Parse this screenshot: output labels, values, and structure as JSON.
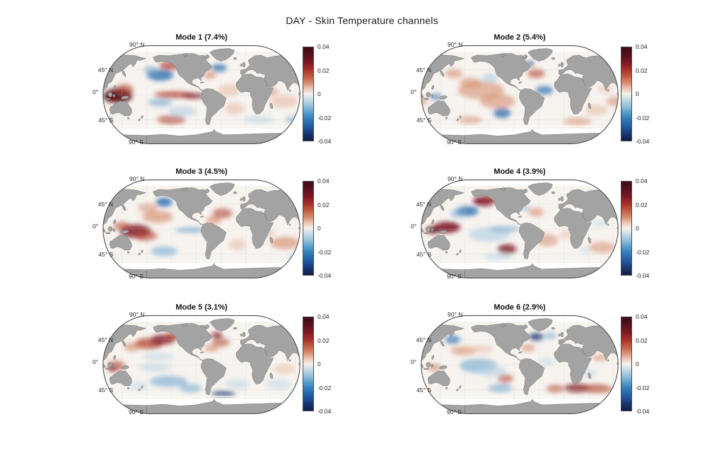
{
  "figure": {
    "title": "DAY - Skin Temperature channels",
    "background": "#ffffff"
  },
  "lat_labels": [
    "90° N",
    "45° N",
    "0°",
    "45° S",
    "90° S"
  ],
  "colorbar": {
    "ticks": [
      "0.04",
      "0.02",
      "0",
      "-0.02",
      "-0.04"
    ],
    "min": -0.04,
    "max": 0.04,
    "gradient_stops": [
      [
        "0%",
        "#3f0a18"
      ],
      [
        "8%",
        "#57101d"
      ],
      [
        "16%",
        "#7d1724"
      ],
      [
        "24%",
        "#a63229"
      ],
      [
        "31%",
        "#c25a3e"
      ],
      [
        "38%",
        "#d98b6d"
      ],
      [
        "44%",
        "#ecc3b0"
      ],
      [
        "50%",
        "#f4f1ee"
      ],
      [
        "56%",
        "#c6dbe7"
      ],
      [
        "63%",
        "#93c1db"
      ],
      [
        "70%",
        "#539ccb"
      ],
      [
        "78%",
        "#2c77b5"
      ],
      [
        "86%",
        "#1d55a0"
      ],
      [
        "93%",
        "#17356f"
      ],
      [
        "100%",
        "#121c4e"
      ]
    ]
  },
  "map_style": {
    "ocean": "#f7f3ef",
    "land": "#a3a3a3",
    "coast": "#2e2e2e",
    "outline": "#4f4f4f",
    "graticule": "#c9c9c9"
  },
  "chart_data": {
    "type": "heatmap",
    "title": "DAY - Skin Temperature channels",
    "subplot_grid": "3x2",
    "projection": "Robinson-like global map, central meridian ~80W",
    "colormap": "diverging blue-white-red (balance)",
    "value_range": [
      -0.04,
      0.04
    ],
    "colorbar_ticks": [
      0.04,
      0.02,
      0,
      -0.02,
      -0.04
    ],
    "latitude_ticks": [
      "90° N",
      "45° N",
      "0°",
      "45° S",
      "90° S"
    ],
    "palette": {
      "XR": "#5e0b15",
      "DR": "#7a1120",
      "R": "#b0402c",
      "MR": "#cf7a58",
      "LR": "#e4b49c",
      "DB": "#16306e",
      "B": "#2e6fae",
      "MB": "#6fa6cf",
      "LB": "#b9d3e4"
    },
    "panels": [
      {
        "label": "Mode 1 (7.4%)",
        "mode": 1,
        "explained_variance_pct": 7.4,
        "features": "Strong positive anomaly over the western Pacific warm pool and equatorial central-east Pacific; negative cells in the central North Pacific, subtropical South Pacific and subpolar North Atlantic.",
        "blobs": [
          [
            128,
            -2,
            26,
            13,
            "XR",
            0.9
          ],
          [
            114,
            -6,
            10,
            7,
            "XR",
            0.85
          ],
          [
            140,
            10,
            16,
            9,
            "R",
            0.6
          ],
          [
            -155,
            35,
            24,
            10,
            "B",
            0.8
          ],
          [
            -172,
            44,
            13,
            7,
            "MB",
            0.6
          ],
          [
            -137,
            52,
            20,
            8,
            "R",
            0.7
          ],
          [
            -130,
            0,
            36,
            6,
            "R",
            0.75
          ],
          [
            -95,
            -2,
            20,
            5,
            "DR",
            0.75
          ],
          [
            -155,
            -14,
            22,
            7,
            "MB",
            0.6
          ],
          [
            -115,
            -30,
            26,
            9,
            "LB",
            0.65
          ],
          [
            -135,
            -45,
            26,
            8,
            "R",
            0.6
          ],
          [
            -48,
            48,
            14,
            7,
            "B",
            0.75
          ],
          [
            -65,
            35,
            12,
            6,
            "MR",
            0.6
          ],
          [
            -30,
            8,
            20,
            11,
            "LR",
            0.5
          ],
          [
            70,
            -12,
            24,
            12,
            "LR",
            0.55
          ],
          [
            -20,
            -25,
            18,
            11,
            "LR",
            0.5
          ],
          [
            25,
            -45,
            28,
            7,
            "LB",
            0.55
          ],
          [
            95,
            -45,
            24,
            7,
            "MB",
            0.5
          ],
          [
            45,
            5,
            15,
            8,
            "MR",
            0.4
          ]
        ]
      },
      {
        "label": "Mode 2 (5.4%)",
        "mode": 2,
        "explained_variance_pct": 5.4,
        "features": "Broad positive anomalies across the tropical Pacific and North Atlantic; negative cells in the subtropical NE Pacific, SE Pacific, tropical Atlantic and Hudson Bay.",
        "blobs": [
          [
            -150,
            8,
            42,
            16,
            "MR",
            0.5
          ],
          [
            -120,
            -12,
            32,
            13,
            "MR",
            0.5
          ],
          [
            -170,
            22,
            20,
            9,
            "MR",
            0.45
          ],
          [
            -133,
            30,
            16,
            8,
            "LB",
            0.7
          ],
          [
            -112,
            -33,
            16,
            9,
            "B",
            0.75
          ],
          [
            -35,
            8,
            16,
            8,
            "B",
            0.7
          ],
          [
            -50,
            38,
            16,
            8,
            "R",
            0.6
          ],
          [
            -78,
            58,
            8,
            5,
            "DB",
            0.85
          ],
          [
            -60,
            56,
            6,
            4,
            "DB",
            0.8
          ],
          [
            128,
            -4,
            10,
            6,
            "B",
            0.6
          ],
          [
            95,
            -12,
            18,
            8,
            "MR",
            0.5
          ],
          [
            60,
            -28,
            20,
            10,
            "LR",
            0.5
          ],
          [
            160,
            38,
            16,
            8,
            "MR",
            0.5
          ],
          [
            25,
            -48,
            26,
            7,
            "MR",
            0.45
          ],
          [
            -170,
            -45,
            22,
            7,
            "MR",
            0.45
          ],
          [
            75,
            10,
            14,
            7,
            "LR",
            0.45
          ]
        ]
      },
      {
        "label": "Mode 3 (4.5%)",
        "mode": 3,
        "explained_variance_pct": 4.5,
        "features": "Negative anomaly in the Gulf of Alaska; strong positive anomaly in the west-central tropical Pacific; weak negative equatorial east Pacific band; positive subtropical Atlantic and south Indian Ocean.",
        "blobs": [
          [
            -148,
            48,
            15,
            8,
            "B",
            0.85
          ],
          [
            -160,
            22,
            28,
            11,
            "MR",
            0.55
          ],
          [
            -178,
            38,
            18,
            8,
            "MR",
            0.45
          ],
          [
            160,
            -4,
            28,
            12,
            "DR",
            0.8
          ],
          [
            178,
            -12,
            22,
            9,
            "R",
            0.6
          ],
          [
            135,
            5,
            15,
            8,
            "R",
            0.55
          ],
          [
            -100,
            -2,
            28,
            5,
            "MB",
            0.65
          ],
          [
            -42,
            28,
            18,
            9,
            "R",
            0.6
          ],
          [
            -58,
            16,
            14,
            7,
            "MR",
            0.55
          ],
          [
            72,
            -25,
            26,
            11,
            "MR",
            0.55
          ],
          [
            -15,
            -28,
            16,
            10,
            "LR",
            0.5
          ],
          [
            -148,
            -40,
            24,
            9,
            "MB",
            0.55
          ],
          [
            100,
            -50,
            24,
            6,
            "LB",
            0.55
          ],
          [
            40,
            -8,
            14,
            8,
            "LR",
            0.45
          ]
        ]
      },
      {
        "label": "Mode 4 (3.9%)",
        "mode": 4,
        "explained_variance_pct": 3.9,
        "features": "Strong positive anomaly in the NE Pacific / Gulf of Alaska and western Pacific warm pool; negative anomaly in the central North Pacific and equatorial-south central Pacific; positive spot in the SE South Pacific.",
        "blobs": [
          [
            -145,
            50,
            20,
            9,
            "DR",
            0.85
          ],
          [
            -128,
            56,
            12,
            6,
            "R",
            0.75
          ],
          [
            -175,
            32,
            20,
            9,
            "B",
            0.8
          ],
          [
            168,
            28,
            14,
            8,
            "MB",
            0.55
          ],
          [
            148,
            3,
            24,
            10,
            "DR",
            0.85
          ],
          [
            122,
            -2,
            12,
            7,
            "XR",
            0.8
          ],
          [
            -135,
            -10,
            38,
            13,
            "LB",
            0.7
          ],
          [
            -108,
            0,
            28,
            6,
            "MB",
            0.55
          ],
          [
            -103,
            -36,
            17,
            9,
            "DR",
            0.75
          ],
          [
            -120,
            -50,
            25,
            7,
            "LB",
            0.55
          ],
          [
            -30,
            -20,
            20,
            11,
            "MR",
            0.45
          ],
          [
            -50,
            30,
            14,
            8,
            "MR",
            0.5
          ],
          [
            -70,
            38,
            8,
            5,
            "MB",
            0.55
          ],
          [
            70,
            -33,
            24,
            10,
            "MR",
            0.45
          ],
          [
            40,
            -38,
            10,
            6,
            "LB",
            0.45
          ],
          [
            65,
            10,
            12,
            6,
            "LB",
            0.45
          ],
          [
            5,
            -10,
            14,
            8,
            "LR",
            0.4
          ]
        ]
      },
      {
        "label": "Mode 5 (3.1%)",
        "mode": 5,
        "explained_variance_pct": 3.1,
        "features": "Broad positive anomaly across the North Pacific and North Atlantic; negative anomalies over the subtropical South Pacific and southern oceans; dark negative streak near 52S in the SW Atlantic.",
        "blobs": [
          [
            -175,
            38,
            26,
            10,
            "R",
            0.75
          ],
          [
            -150,
            45,
            22,
            9,
            "DR",
            0.75
          ],
          [
            -133,
            51,
            13,
            7,
            "R",
            0.7
          ],
          [
            155,
            32,
            16,
            8,
            "MR",
            0.55
          ],
          [
            125,
            -2,
            16,
            9,
            "R",
            0.6
          ],
          [
            118,
            -8,
            8,
            5,
            "DR",
            0.65
          ],
          [
            -165,
            -5,
            30,
            8,
            "LB",
            0.55
          ],
          [
            -158,
            15,
            28,
            7,
            "LB",
            0.5
          ],
          [
            -140,
            -30,
            34,
            10,
            "MB",
            0.6
          ],
          [
            -100,
            -42,
            20,
            8,
            "MB",
            0.55
          ],
          [
            -52,
            53,
            10,
            6,
            "DR",
            0.7
          ],
          [
            -45,
            40,
            16,
            8,
            "R",
            0.55
          ],
          [
            -62,
            30,
            14,
            7,
            "MR",
            0.5
          ],
          [
            -40,
            -52,
            22,
            4,
            "DB",
            0.8
          ],
          [
            -15,
            -35,
            22,
            9,
            "LB",
            0.5
          ],
          [
            60,
            -35,
            24,
            9,
            "LB",
            0.45
          ],
          [
            70,
            -8,
            20,
            9,
            "LR",
            0.45
          ],
          [
            165,
            -38,
            18,
            8,
            "LB",
            0.45
          ]
        ]
      },
      {
        "label": "Mode 6 (2.9%)",
        "mode": 6,
        "explained_variance_pct": 2.9,
        "features": "Negative anomalies across the central tropical Pacific and subpolar North Atlantic; strong positive band near 45S across the South Atlantic and Indian Ocean; positive subtropical NW Pacific.",
        "blobs": [
          [
            158,
            45,
            14,
            8,
            "B",
            0.65
          ],
          [
            178,
            25,
            24,
            8,
            "MR",
            0.5
          ],
          [
            -148,
            28,
            20,
            7,
            "LR",
            0.45
          ],
          [
            -155,
            -2,
            34,
            13,
            "MB",
            0.6
          ],
          [
            -130,
            -12,
            26,
            10,
            "LB",
            0.6
          ],
          [
            -106,
            -25,
            14,
            8,
            "R",
            0.55
          ],
          [
            -115,
            -42,
            22,
            8,
            "MB",
            0.55
          ],
          [
            -50,
            50,
            13,
            7,
            "DB",
            0.75
          ],
          [
            -25,
            52,
            12,
            6,
            "MB",
            0.55
          ],
          [
            -65,
            30,
            13,
            7,
            "MR",
            0.5
          ],
          [
            -30,
            5,
            14,
            8,
            "LB",
            0.45
          ],
          [
            25,
            -42,
            24,
            8,
            "DR",
            0.7
          ],
          [
            60,
            -43,
            26,
            8,
            "R",
            0.65
          ],
          [
            -15,
            -43,
            16,
            7,
            "R",
            0.55
          ],
          [
            95,
            -45,
            18,
            6,
            "MR",
            0.45
          ],
          [
            65,
            12,
            12,
            6,
            "MR",
            0.5
          ],
          [
            125,
            -5,
            12,
            7,
            "MR",
            0.55
          ],
          [
            45,
            -15,
            16,
            9,
            "LB",
            0.4
          ]
        ]
      }
    ]
  }
}
